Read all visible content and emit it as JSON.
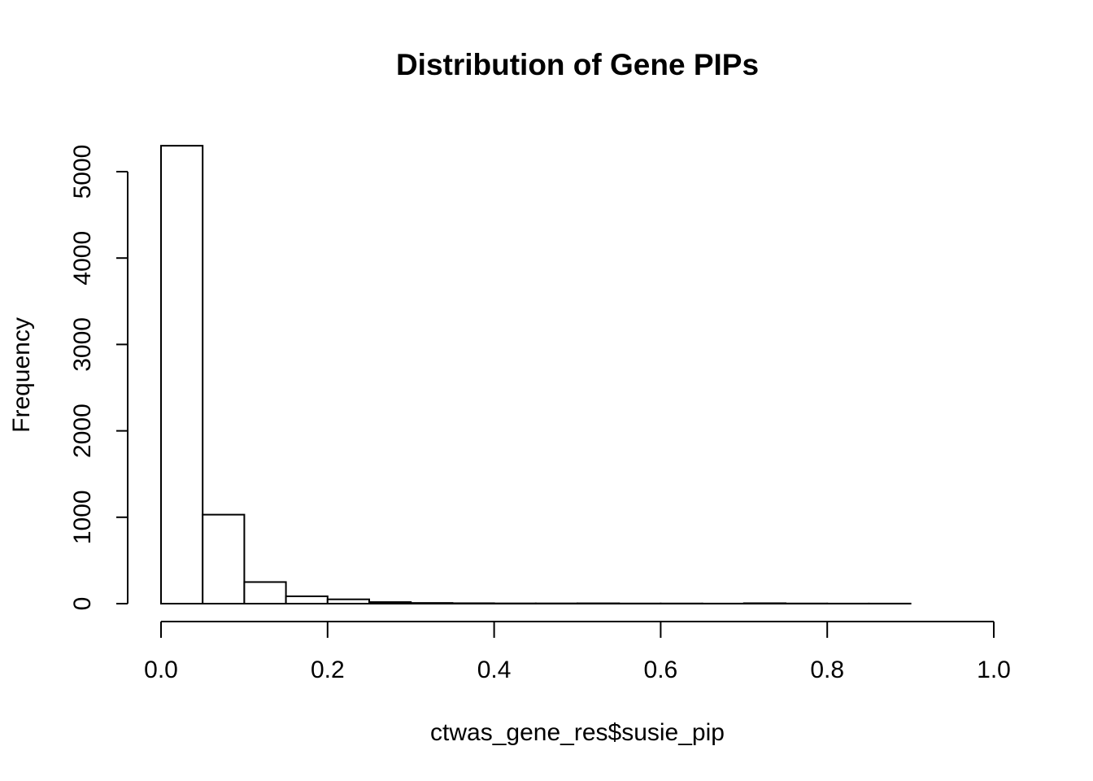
{
  "chart_data": {
    "type": "bar",
    "title": "Distribution of Gene PIPs",
    "xlabel": "ctwas_gene_res$susie_pip",
    "ylabel": "Frequency",
    "xlim": [
      0,
      1
    ],
    "ylim": [
      0,
      5000
    ],
    "x_ticks": [
      "0.0",
      "0.2",
      "0.4",
      "0.6",
      "0.8",
      "1.0"
    ],
    "y_ticks": [
      "0",
      "1000",
      "2000",
      "3000",
      "4000",
      "5000"
    ],
    "bin_width": 0.05,
    "bins": [
      {
        "start": 0.0,
        "end": 0.05,
        "count": 5300
      },
      {
        "start": 0.05,
        "end": 0.1,
        "count": 1030
      },
      {
        "start": 0.1,
        "end": 0.15,
        "count": 250
      },
      {
        "start": 0.15,
        "end": 0.2,
        "count": 85
      },
      {
        "start": 0.2,
        "end": 0.25,
        "count": 50
      },
      {
        "start": 0.25,
        "end": 0.3,
        "count": 18
      },
      {
        "start": 0.3,
        "end": 0.35,
        "count": 8
      },
      {
        "start": 0.35,
        "end": 0.4,
        "count": 5
      },
      {
        "start": 0.4,
        "end": 0.45,
        "count": 3
      },
      {
        "start": 0.45,
        "end": 0.5,
        "count": 3
      },
      {
        "start": 0.5,
        "end": 0.55,
        "count": 4
      },
      {
        "start": 0.55,
        "end": 0.6,
        "count": 2
      },
      {
        "start": 0.6,
        "end": 0.65,
        "count": 2
      },
      {
        "start": 0.65,
        "end": 0.7,
        "count": 1
      },
      {
        "start": 0.7,
        "end": 0.75,
        "count": 5
      },
      {
        "start": 0.75,
        "end": 0.8,
        "count": 2
      },
      {
        "start": 0.8,
        "end": 0.85,
        "count": 1
      },
      {
        "start": 0.85,
        "end": 0.9,
        "count": 1
      }
    ]
  }
}
